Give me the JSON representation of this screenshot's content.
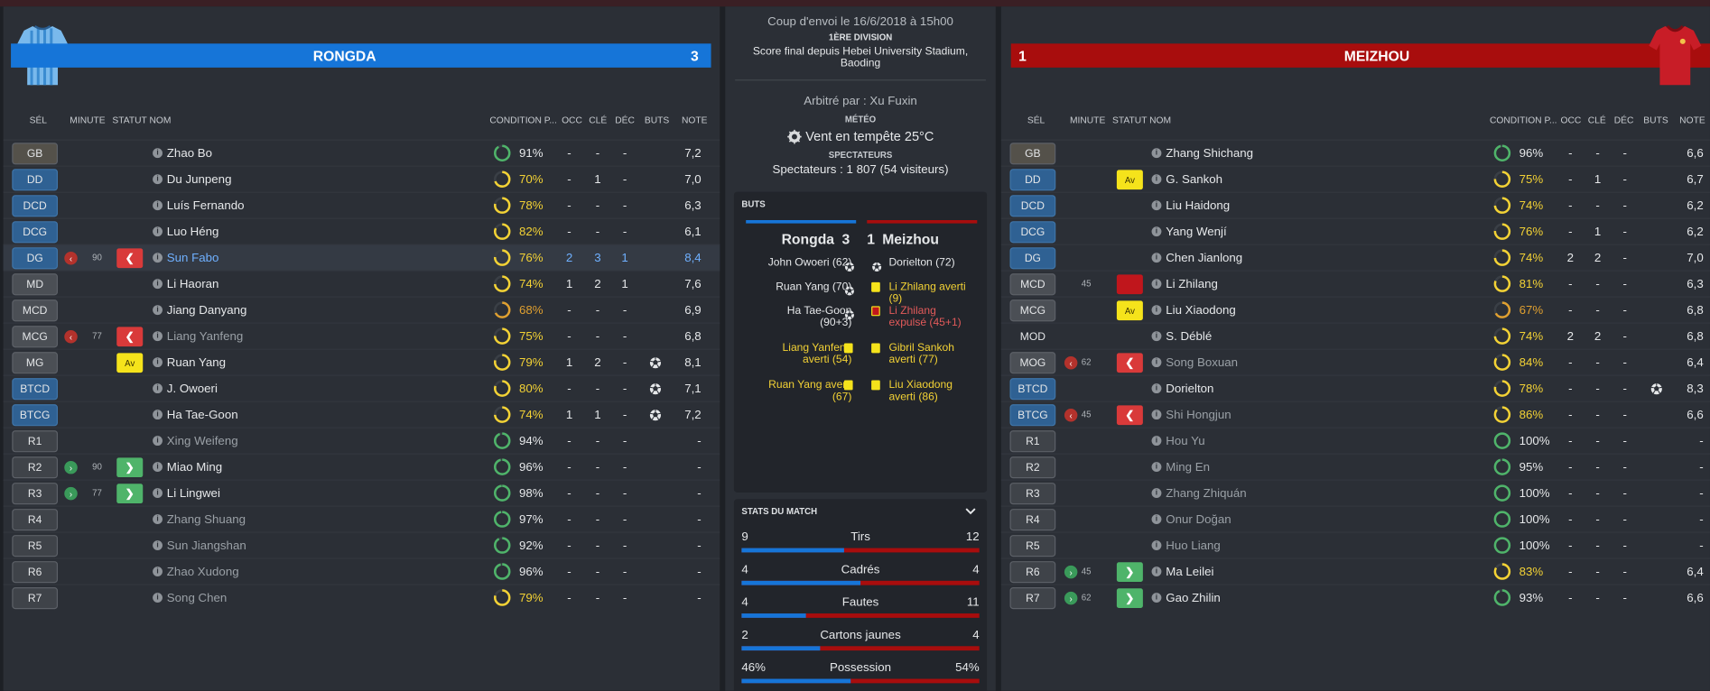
{
  "headers": {
    "sel": "SÉL",
    "minute": "MINUTE",
    "statut": "STATUT",
    "nom": "NOM",
    "condition": "CONDITION P...",
    "occ": "OCC",
    "cle": "CLÉ",
    "dec": "DÉC",
    "buts": "BUTS",
    "note": "NOTE"
  },
  "home": {
    "name": "RONGDA",
    "score": "3",
    "color": "#1675d8",
    "players": [
      {
        "pos": "GB",
        "kind": "gk",
        "name": "Zhao Bo",
        "cond": 91,
        "condText": "91%",
        "occ": "-",
        "cle": "-",
        "dec": "-",
        "note": "7,2"
      },
      {
        "pos": "DD",
        "kind": "def",
        "name": "Du Junpeng",
        "cond": 70,
        "condText": "70%",
        "occ": "-",
        "cle": "1",
        "dec": "-",
        "note": "7,0"
      },
      {
        "pos": "DCD",
        "kind": "def",
        "name": "Luís Fernando",
        "cond": 78,
        "condText": "78%",
        "occ": "-",
        "cle": "-",
        "dec": "-",
        "note": "6,3"
      },
      {
        "pos": "DCG",
        "kind": "def",
        "name": "Luo Héng",
        "cond": 82,
        "condText": "82%",
        "occ": "-",
        "cle": "-",
        "dec": "-",
        "note": "6,1"
      },
      {
        "pos": "DG",
        "kind": "def",
        "name": "Sun Fabo",
        "cond": 76,
        "condText": "76%",
        "occ": "2",
        "cle": "3",
        "dec": "1",
        "note": "8,4",
        "minute": "90",
        "minIcon": "out",
        "status": "out",
        "highlight": true
      },
      {
        "pos": "MD",
        "kind": "mid",
        "name": "Li Haoran",
        "cond": 74,
        "condText": "74%",
        "occ": "1",
        "cle": "2",
        "dec": "1",
        "note": "7,6"
      },
      {
        "pos": "MCD",
        "kind": "mid",
        "name": "Jiang Danyang",
        "cond": 68,
        "condText": "68%",
        "occ": "-",
        "cle": "-",
        "dec": "-",
        "note": "6,9"
      },
      {
        "pos": "MCG",
        "kind": "mid",
        "name": "Liang Yanfeng",
        "cond": 75,
        "condText": "75%",
        "occ": "-",
        "cle": "-",
        "dec": "-",
        "note": "6,8",
        "minute": "77",
        "minIcon": "out",
        "status": "out",
        "dim": true
      },
      {
        "pos": "MG",
        "kind": "mid",
        "name": "Ruan Yang",
        "cond": 79,
        "condText": "79%",
        "occ": "1",
        "cle": "2",
        "dec": "-",
        "note": "8,1",
        "status": "yel",
        "statusText": "Av",
        "goal": true
      },
      {
        "pos": "BTCD",
        "kind": "def",
        "name": "J. Owoeri",
        "cond": 80,
        "condText": "80%",
        "occ": "-",
        "cle": "-",
        "dec": "-",
        "note": "7,1",
        "goal": true
      },
      {
        "pos": "BTCG",
        "kind": "def",
        "name": "Ha Tae-Goon",
        "cond": 74,
        "condText": "74%",
        "occ": "1",
        "cle": "1",
        "dec": "-",
        "note": "7,2",
        "goal": true
      },
      {
        "pos": "R1",
        "kind": "sub",
        "name": "Xing Weifeng",
        "cond": 94,
        "condText": "94%",
        "occ": "-",
        "cle": "-",
        "dec": "-",
        "note": "-",
        "dim": true
      },
      {
        "pos": "R2",
        "kind": "sub",
        "name": "Miao Ming",
        "cond": 96,
        "condText": "96%",
        "occ": "-",
        "cle": "-",
        "dec": "-",
        "note": "-",
        "minute": "90",
        "minIcon": "in",
        "status": "in"
      },
      {
        "pos": "R3",
        "kind": "sub",
        "name": "Li Lingwei",
        "cond": 98,
        "condText": "98%",
        "occ": "-",
        "cle": "-",
        "dec": "-",
        "note": "-",
        "minute": "77",
        "minIcon": "in",
        "status": "in"
      },
      {
        "pos": "R4",
        "kind": "sub",
        "name": "Zhang Shuang",
        "cond": 97,
        "condText": "97%",
        "occ": "-",
        "cle": "-",
        "dec": "-",
        "note": "-",
        "dim": true
      },
      {
        "pos": "R5",
        "kind": "sub",
        "name": "Sun Jiangshan",
        "cond": 92,
        "condText": "92%",
        "occ": "-",
        "cle": "-",
        "dec": "-",
        "note": "-",
        "dim": true
      },
      {
        "pos": "R6",
        "kind": "sub",
        "name": "Zhao Xudong",
        "cond": 96,
        "condText": "96%",
        "occ": "-",
        "cle": "-",
        "dec": "-",
        "note": "-",
        "dim": true
      },
      {
        "pos": "R7",
        "kind": "sub",
        "name": "Song Chen",
        "cond": 79,
        "condText": "79%",
        "occ": "-",
        "cle": "-",
        "dec": "-",
        "note": "-",
        "dim": true
      }
    ]
  },
  "away": {
    "name": "MEIZHOU",
    "score": "1",
    "color": "#a80d0d",
    "players": [
      {
        "pos": "GB",
        "kind": "gk",
        "name": "Zhang Shichang",
        "cond": 96,
        "condText": "96%",
        "occ": "-",
        "cle": "-",
        "dec": "-",
        "note": "6,6"
      },
      {
        "pos": "DD",
        "kind": "def",
        "name": "G. Sankoh",
        "cond": 75,
        "condText": "75%",
        "occ": "-",
        "cle": "1",
        "dec": "-",
        "note": "6,7",
        "status": "yel",
        "statusText": "Av"
      },
      {
        "pos": "DCD",
        "kind": "def",
        "name": "Liu Haidong",
        "cond": 74,
        "condText": "74%",
        "occ": "-",
        "cle": "-",
        "dec": "-",
        "note": "6,2"
      },
      {
        "pos": "DCG",
        "kind": "def",
        "name": "Yang Wenjí",
        "cond": 76,
        "condText": "76%",
        "occ": "-",
        "cle": "1",
        "dec": "-",
        "note": "6,2"
      },
      {
        "pos": "DG",
        "kind": "def",
        "name": "Chen Jianlong",
        "cond": 74,
        "condText": "74%",
        "occ": "2",
        "cle": "2",
        "dec": "-",
        "note": "7,0"
      },
      {
        "pos": "MCD",
        "kind": "mid",
        "name": "Li Zhilang",
        "cond": 81,
        "condText": "81%",
        "occ": "-",
        "cle": "-",
        "dec": "-",
        "note": "6,3",
        "minute": "45",
        "status": "red"
      },
      {
        "pos": "MCG",
        "kind": "mid",
        "name": "Liu Xiaodong",
        "cond": 67,
        "condText": "67%",
        "occ": "-",
        "cle": "-",
        "dec": "-",
        "note": "6,8",
        "status": "yel",
        "statusText": "Av"
      },
      {
        "pos": "MOD",
        "kind": "none",
        "name": "S. Déblé",
        "cond": 74,
        "condText": "74%",
        "occ": "2",
        "cle": "2",
        "dec": "-",
        "note": "6,8"
      },
      {
        "pos": "MOG",
        "kind": "mid",
        "name": "Song Boxuan",
        "cond": 84,
        "condText": "84%",
        "occ": "-",
        "cle": "-",
        "dec": "-",
        "note": "6,4",
        "minute": "62",
        "minIcon": "out",
        "status": "out",
        "dim": true
      },
      {
        "pos": "BTCD",
        "kind": "def",
        "name": "Dorielton",
        "cond": 78,
        "condText": "78%",
        "occ": "-",
        "cle": "-",
        "dec": "-",
        "note": "8,3",
        "goal": true
      },
      {
        "pos": "BTCG",
        "kind": "def",
        "name": "Shi Hongjun",
        "cond": 86,
        "condText": "86%",
        "occ": "-",
        "cle": "-",
        "dec": "-",
        "note": "6,6",
        "minute": "45",
        "minIcon": "out",
        "status": "out",
        "dim": true
      },
      {
        "pos": "R1",
        "kind": "sub",
        "name": "Hou Yu",
        "cond": 100,
        "condText": "100%",
        "occ": "-",
        "cle": "-",
        "dec": "-",
        "note": "-",
        "dim": true
      },
      {
        "pos": "R2",
        "kind": "sub",
        "name": "Ming En",
        "cond": 95,
        "condText": "95%",
        "occ": "-",
        "cle": "-",
        "dec": "-",
        "note": "-",
        "dim": true
      },
      {
        "pos": "R3",
        "kind": "sub",
        "name": "Zhang Zhiquán",
        "cond": 100,
        "condText": "100%",
        "occ": "-",
        "cle": "-",
        "dec": "-",
        "note": "-",
        "dim": true
      },
      {
        "pos": "R4",
        "kind": "sub",
        "name": "Onur Doğan",
        "cond": 100,
        "condText": "100%",
        "occ": "-",
        "cle": "-",
        "dec": "-",
        "note": "-",
        "dim": true
      },
      {
        "pos": "R5",
        "kind": "sub",
        "name": "Huo Liang",
        "cond": 100,
        "condText": "100%",
        "occ": "-",
        "cle": "-",
        "dec": "-",
        "note": "-",
        "dim": true
      },
      {
        "pos": "R6",
        "kind": "sub",
        "name": "Ma Leilei",
        "cond": 83,
        "condText": "83%",
        "occ": "-",
        "cle": "-",
        "dec": "-",
        "note": "6,4",
        "minute": "45",
        "minIcon": "in",
        "status": "in"
      },
      {
        "pos": "R7",
        "kind": "sub",
        "name": "Gao Zhilin",
        "cond": 93,
        "condText": "93%",
        "occ": "-",
        "cle": "-",
        "dec": "-",
        "note": "6,6",
        "minute": "62",
        "minIcon": "in",
        "status": "in"
      }
    ]
  },
  "match": {
    "kickoff": "Coup d'envoi le 16/6/2018 à 15h00",
    "division": "1ÈRE DIVISION",
    "venue_line1": "Score final depuis Hebei University Stadium,",
    "venue_line2": "Baoding",
    "referee": "Arbitré par : Xu Fuxin",
    "weather_label": "MÉTÉO",
    "weather": "Vent en tempête 25°C",
    "weather_icon": "gear-weather-icon",
    "spectators_label": "SPECTATEURS",
    "spectators": "Spectateurs : 1 807 (54 visiteurs)"
  },
  "goals": {
    "title": "BUTS",
    "home_name": "Rongda",
    "home_score": "3",
    "away_score": "1",
    "away_name": "Meizhou",
    "home_events": [
      {
        "lines": [
          "John Owoeri (62)"
        ],
        "type": "goal"
      },
      {
        "lines": [
          "Ruan Yang (70)"
        ],
        "type": "goal"
      },
      {
        "lines": [
          "Ha Tae-Goon",
          "(90+3)"
        ],
        "type": "goal"
      },
      {
        "lines": [
          "Liang Yanfeng",
          "averti (54)"
        ],
        "type": "yellow"
      },
      {
        "lines": [
          "Ruan Yang averti",
          "(67)"
        ],
        "type": "yellow"
      }
    ],
    "away_events": [
      {
        "lines": [
          "Dorielton (72)"
        ],
        "type": "goal"
      },
      {
        "lines": [
          "Li Zhilang averti",
          "(9)"
        ],
        "type": "yellow"
      },
      {
        "lines": [
          "Li Zhilang",
          "expulsé (45+1)"
        ],
        "type": "red"
      },
      {
        "lines": [
          "Gibril Sankoh",
          "averti (77)"
        ],
        "type": "yellow"
      },
      {
        "lines": [
          "Liu Xiaodong",
          "averti (86)"
        ],
        "type": "yellow"
      }
    ]
  },
  "stats": {
    "title": "STATS DU MATCH",
    "rows": [
      {
        "label": "Tirs",
        "home": "9",
        "away": "12",
        "home_share": 0.43
      },
      {
        "label": "Cadrés",
        "home": "4",
        "away": "4",
        "home_share": 0.5
      },
      {
        "label": "Fautes",
        "home": "4",
        "away": "11",
        "home_share": 0.27
      },
      {
        "label": "Cartons jaunes",
        "home": "2",
        "away": "4",
        "home_share": 0.33
      },
      {
        "label": "Possession",
        "home": "46%",
        "away": "54%",
        "home_share": 0.46
      }
    ]
  },
  "colors": {
    "home": "#1675d8",
    "away": "#a80d0d",
    "yellow": "#f3d235",
    "green": "#4fb46a",
    "orange": "#e0a030"
  }
}
